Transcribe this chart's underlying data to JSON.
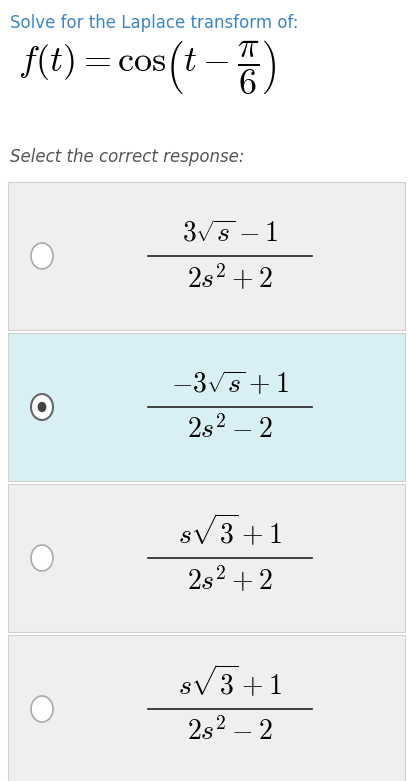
{
  "title_line1": "Solve for the Laplace transform of:",
  "title_line1_color": "#3d85c8",
  "formula_fontsize": 26,
  "prompt": "Select the correct response:",
  "options": [
    {
      "numerator": "3\\sqrt{s} - 1",
      "denominator": "2s^2 + 2",
      "selected": false,
      "highlighted": false
    },
    {
      "numerator": "-3\\sqrt{s} + 1",
      "denominator": "2s^2 - 2",
      "selected": true,
      "highlighted": true
    },
    {
      "numerator": "s\\sqrt{3} + 1",
      "denominator": "2s^2 + 2",
      "selected": false,
      "highlighted": false
    },
    {
      "numerator": "s\\sqrt{3} + 1",
      "denominator": "2s^2 - 2",
      "selected": false,
      "highlighted": false
    }
  ],
  "bg_color": "#ffffff",
  "option_bg_normal": "#efefef",
  "option_bg_selected": "#d8eff4",
  "option_border_color": "#d0d0d0",
  "radio_color": "#aaaaaa",
  "radio_fill": "#ffffff",
  "radio_selected_outer": "#666666",
  "radio_selected_inner": "#444444",
  "title_fontsize": 12,
  "prompt_fontsize": 12,
  "option_fontsize": 20,
  "fraction_line_color": "#222222"
}
